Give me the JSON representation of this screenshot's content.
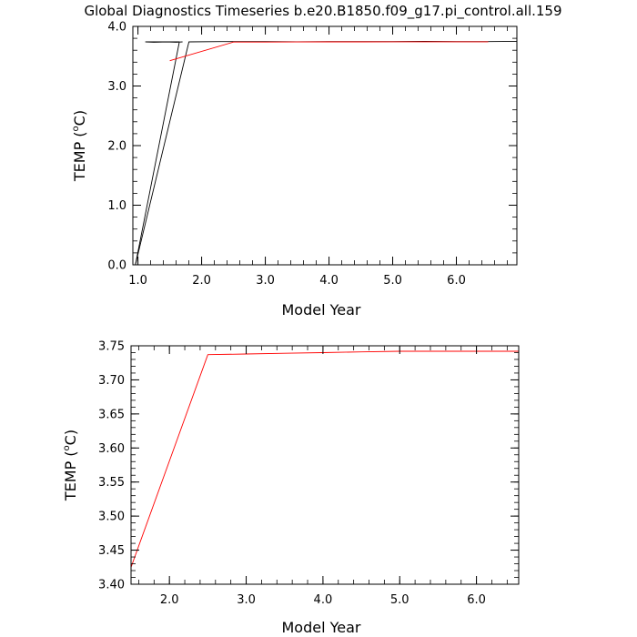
{
  "chart_data": {
    "title": "Global Diagnostics Timeseries b.e20.B1850.f09_g17.pi_control.all.159",
    "colors": {
      "black_series": "#000000",
      "red_series": "#ff0000",
      "background": "#ffffff"
    },
    "panels": [
      {
        "type": "line",
        "xlabel": "Model Year",
        "ylabel_pre": "TEMP (",
        "ylabel_deg": "o",
        "ylabel_post": "C)",
        "xlim": [
          0.92,
          6.95
        ],
        "ylim": [
          0.0,
          4.0
        ],
        "xticks": [
          1.0,
          2.0,
          3.0,
          4.0,
          5.0,
          6.0
        ],
        "xtick_labels": [
          "1.0",
          "2.0",
          "3.0",
          "4.0",
          "5.0",
          "6.0"
        ],
        "yticks": [
          0.0,
          1.0,
          2.0,
          3.0,
          4.0
        ],
        "ytick_labels": [
          "0.0",
          "1.0",
          "2.0",
          "3.0",
          "4.0"
        ],
        "x_minor_step": 0.2,
        "y_minor_step": 0.2,
        "series": [
          {
            "color": "#000000",
            "points": [
              [
                0.96,
                0.0
              ],
              [
                1.65,
                3.74
              ],
              [
                1.12,
                3.74
              ],
              [
                1.25,
                3.735
              ],
              [
                1.45,
                3.74
              ],
              [
                1.6,
                3.735
              ],
              [
                1.7,
                3.74
              ]
            ]
          },
          {
            "color": "#000000",
            "points": [
              [
                0.96,
                0.0
              ],
              [
                1.8,
                3.74
              ],
              [
                2.3,
                3.745
              ],
              [
                3.0,
                3.745
              ],
              [
                3.5,
                3.74
              ],
              [
                4.0,
                3.745
              ],
              [
                4.5,
                3.745
              ],
              [
                5.0,
                3.745
              ],
              [
                5.5,
                3.75
              ],
              [
                6.0,
                3.745
              ],
              [
                6.5,
                3.745
              ],
              [
                6.95,
                3.75
              ]
            ]
          },
          {
            "color": "#ff0000",
            "points": [
              [
                1.5,
                3.425
              ],
              [
                2.5,
                3.737
              ],
              [
                3.0,
                3.738
              ],
              [
                3.5,
                3.739
              ],
              [
                4.0,
                3.74
              ],
              [
                4.5,
                3.741
              ],
              [
                5.0,
                3.742
              ],
              [
                5.5,
                3.742
              ],
              [
                6.0,
                3.742
              ],
              [
                6.5,
                3.742
              ]
            ]
          }
        ]
      },
      {
        "type": "line",
        "xlabel": "Model Year",
        "ylabel_pre": "TEMP (",
        "ylabel_deg": "o",
        "ylabel_post": "C)",
        "xlim": [
          1.5,
          6.55
        ],
        "ylim": [
          3.4,
          3.75
        ],
        "xticks": [
          2.0,
          3.0,
          4.0,
          5.0,
          6.0
        ],
        "xtick_labels": [
          "2.0",
          "3.0",
          "4.0",
          "5.0",
          "6.0"
        ],
        "yticks": [
          3.4,
          3.45,
          3.5,
          3.55,
          3.6,
          3.65,
          3.7,
          3.75
        ],
        "ytick_labels": [
          "3.40",
          "3.45",
          "3.50",
          "3.55",
          "3.60",
          "3.65",
          "3.70",
          "3.75"
        ],
        "x_minor_step": 0.2,
        "y_minor_step": 0.01,
        "series": [
          {
            "color": "#ff0000",
            "points": [
              [
                1.5,
                3.425
              ],
              [
                2.5,
                3.737
              ],
              [
                3.0,
                3.738
              ],
              [
                3.5,
                3.739
              ],
              [
                4.0,
                3.74
              ],
              [
                4.5,
                3.741
              ],
              [
                5.0,
                3.742
              ],
              [
                5.5,
                3.742
              ],
              [
                6.0,
                3.742
              ],
              [
                6.55,
                3.742
              ]
            ]
          }
        ]
      }
    ]
  }
}
